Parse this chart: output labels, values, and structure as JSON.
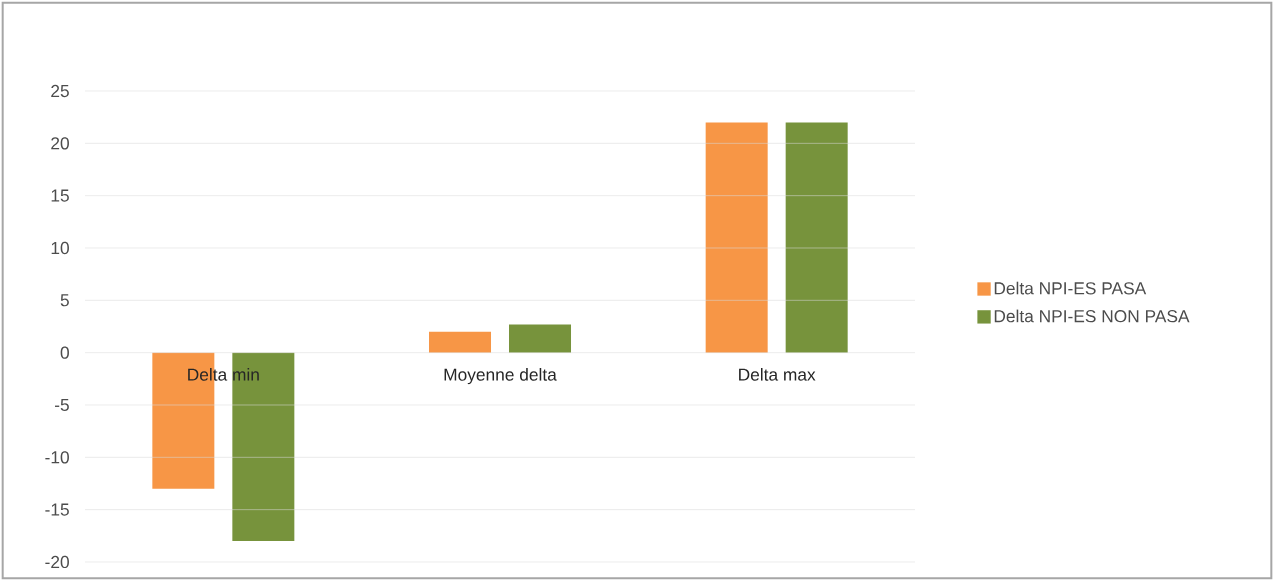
{
  "chart_data": {
    "type": "bar",
    "categories": [
      "Delta min",
      "Moyenne delta",
      "Delta max"
    ],
    "series": [
      {
        "name": "Delta NPI-ES PASA",
        "color": "#f79646",
        "values": [
          -13,
          2,
          22
        ]
      },
      {
        "name": "Delta NPI-ES NON PASA",
        "color": "#77933c",
        "values": [
          -18,
          2.7,
          22
        ]
      }
    ],
    "ylim": [
      -20,
      25
    ],
    "yticks": [
      -20,
      -15,
      -10,
      -5,
      0,
      5,
      10,
      15,
      20,
      25
    ],
    "grid": "y",
    "legend": "right"
  }
}
